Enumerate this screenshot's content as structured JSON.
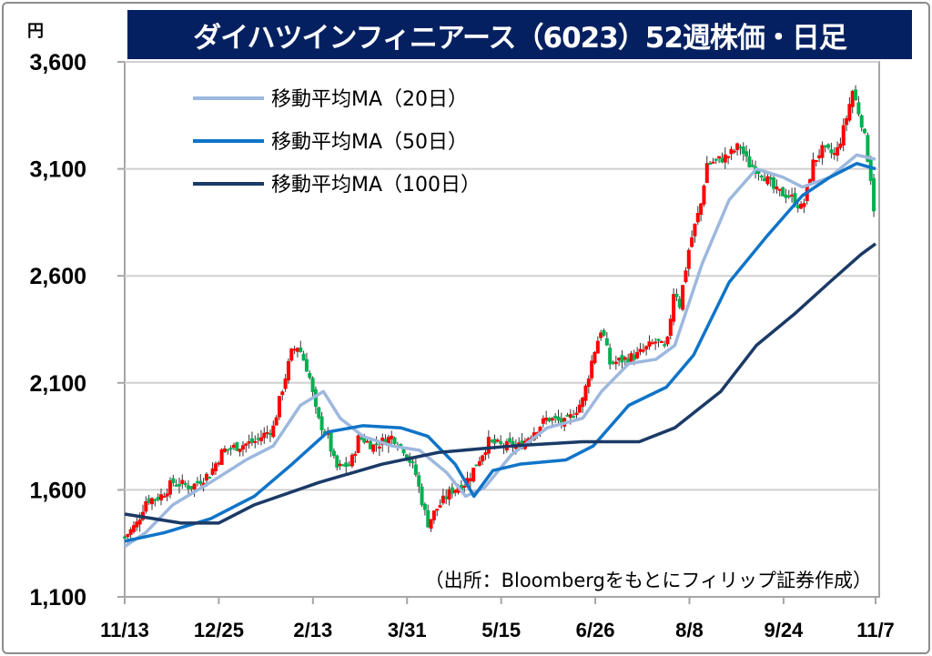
{
  "title": "ダイハツインフィニアース（6023）52週株価・日足",
  "chart_data": {
    "type": "candlestick",
    "title": "ダイハツインフィニアース（6023）52週株価・日足",
    "ylabel": "円",
    "ylim": [
      1100,
      3600
    ],
    "yticks": [
      {
        "v": 3600,
        "label": "3,600"
      },
      {
        "v": 3100,
        "label": "3,100"
      },
      {
        "v": 2600,
        "label": "2,600"
      },
      {
        "v": 2100,
        "label": "2,100"
      },
      {
        "v": 1600,
        "label": "1,600"
      },
      {
        "v": 1100,
        "label": "1,100"
      }
    ],
    "xlim_days": [
      0,
      359
    ],
    "xticks": [
      {
        "d": 0,
        "label": "11/13"
      },
      {
        "d": 45,
        "label": "12/25"
      },
      {
        "d": 90,
        "label": "2/13"
      },
      {
        "d": 135,
        "label": "3/31"
      },
      {
        "d": 180,
        "label": "5/15"
      },
      {
        "d": 225,
        "label": "6/26"
      },
      {
        "d": 270,
        "label": "8/8"
      },
      {
        "d": 315,
        "label": "9/24"
      },
      {
        "d": 359,
        "label": "11/7"
      }
    ],
    "grid": true,
    "up_color": "#ff0000",
    "down_color": "#00b050",
    "price_path": [
      [
        0,
        1380
      ],
      [
        6,
        1445
      ],
      [
        10,
        1550
      ],
      [
        17,
        1570
      ],
      [
        23,
        1635
      ],
      [
        32,
        1615
      ],
      [
        41,
        1680
      ],
      [
        47,
        1785
      ],
      [
        54,
        1805
      ],
      [
        62,
        1825
      ],
      [
        71,
        1890
      ],
      [
        75,
        2060
      ],
      [
        80,
        2250
      ],
      [
        83,
        2275
      ],
      [
        88,
        2145
      ],
      [
        92,
        1935
      ],
      [
        97,
        1850
      ],
      [
        101,
        1700
      ],
      [
        108,
        1720
      ],
      [
        112,
        1850
      ],
      [
        119,
        1805
      ],
      [
        128,
        1850
      ],
      [
        134,
        1785
      ],
      [
        139,
        1680
      ],
      [
        143,
        1510
      ],
      [
        145,
        1445
      ],
      [
        149,
        1510
      ],
      [
        156,
        1595
      ],
      [
        163,
        1635
      ],
      [
        167,
        1700
      ],
      [
        174,
        1825
      ],
      [
        180,
        1805
      ],
      [
        189,
        1805
      ],
      [
        195,
        1870
      ],
      [
        202,
        1935
      ],
      [
        211,
        1910
      ],
      [
        219,
        2020
      ],
      [
        224,
        2230
      ],
      [
        228,
        2360
      ],
      [
        232,
        2190
      ],
      [
        239,
        2210
      ],
      [
        245,
        2230
      ],
      [
        254,
        2295
      ],
      [
        259,
        2250
      ],
      [
        263,
        2570
      ],
      [
        265,
        2445
      ],
      [
        270,
        2740
      ],
      [
        276,
        2955
      ],
      [
        278,
        3125
      ],
      [
        285,
        3145
      ],
      [
        289,
        3165
      ],
      [
        294,
        3210
      ],
      [
        298,
        3125
      ],
      [
        305,
        3080
      ],
      [
        311,
        2995
      ],
      [
        318,
        2975
      ],
      [
        324,
        2910
      ],
      [
        329,
        3125
      ],
      [
        333,
        3190
      ],
      [
        340,
        3165
      ],
      [
        344,
        3295
      ],
      [
        348,
        3465
      ],
      [
        353,
        3295
      ],
      [
        357,
        3040
      ],
      [
        359,
        2825
      ],
      [
        359.5,
        2760
      ]
    ],
    "series": [
      {
        "name": "移動平均MA（20日）",
        "color": "#9db8de",
        "points": [
          [
            0,
            1335
          ],
          [
            10,
            1400
          ],
          [
            23,
            1530
          ],
          [
            41,
            1635
          ],
          [
            58,
            1740
          ],
          [
            71,
            1805
          ],
          [
            84,
            1995
          ],
          [
            95,
            2060
          ],
          [
            103,
            1935
          ],
          [
            114,
            1850
          ],
          [
            128,
            1805
          ],
          [
            141,
            1785
          ],
          [
            154,
            1680
          ],
          [
            163,
            1570
          ],
          [
            172,
            1610
          ],
          [
            185,
            1765
          ],
          [
            202,
            1890
          ],
          [
            219,
            1935
          ],
          [
            228,
            2060
          ],
          [
            241,
            2190
          ],
          [
            254,
            2210
          ],
          [
            263,
            2275
          ],
          [
            276,
            2655
          ],
          [
            289,
            2955
          ],
          [
            302,
            3100
          ],
          [
            315,
            3060
          ],
          [
            324,
            3015
          ],
          [
            337,
            3060
          ],
          [
            350,
            3165
          ],
          [
            359,
            3145
          ]
        ]
      },
      {
        "name": "移動平均MA（50日）",
        "color": "#0f74c8",
        "points": [
          [
            0,
            1360
          ],
          [
            19,
            1400
          ],
          [
            41,
            1465
          ],
          [
            62,
            1570
          ],
          [
            80,
            1720
          ],
          [
            97,
            1870
          ],
          [
            114,
            1900
          ],
          [
            132,
            1890
          ],
          [
            145,
            1850
          ],
          [
            158,
            1720
          ],
          [
            167,
            1570
          ],
          [
            176,
            1690
          ],
          [
            189,
            1720
          ],
          [
            211,
            1740
          ],
          [
            224,
            1805
          ],
          [
            241,
            1995
          ],
          [
            259,
            2080
          ],
          [
            272,
            2230
          ],
          [
            289,
            2570
          ],
          [
            307,
            2785
          ],
          [
            324,
            2975
          ],
          [
            337,
            3060
          ],
          [
            350,
            3125
          ],
          [
            359,
            3100
          ]
        ]
      },
      {
        "name": "移動平均MA（100日）",
        "color": "#1b3a66",
        "points": [
          [
            0,
            1487
          ],
          [
            27,
            1445
          ],
          [
            45,
            1445
          ],
          [
            62,
            1530
          ],
          [
            93,
            1635
          ],
          [
            123,
            1720
          ],
          [
            150,
            1775
          ],
          [
            185,
            1805
          ],
          [
            219,
            1825
          ],
          [
            246,
            1825
          ],
          [
            263,
            1890
          ],
          [
            285,
            2060
          ],
          [
            302,
            2275
          ],
          [
            320,
            2420
          ],
          [
            337,
            2570
          ],
          [
            352,
            2700
          ],
          [
            359,
            2750
          ]
        ]
      }
    ],
    "source": "（出所：Bloombergをもとにフィリップ証券作成）"
  }
}
